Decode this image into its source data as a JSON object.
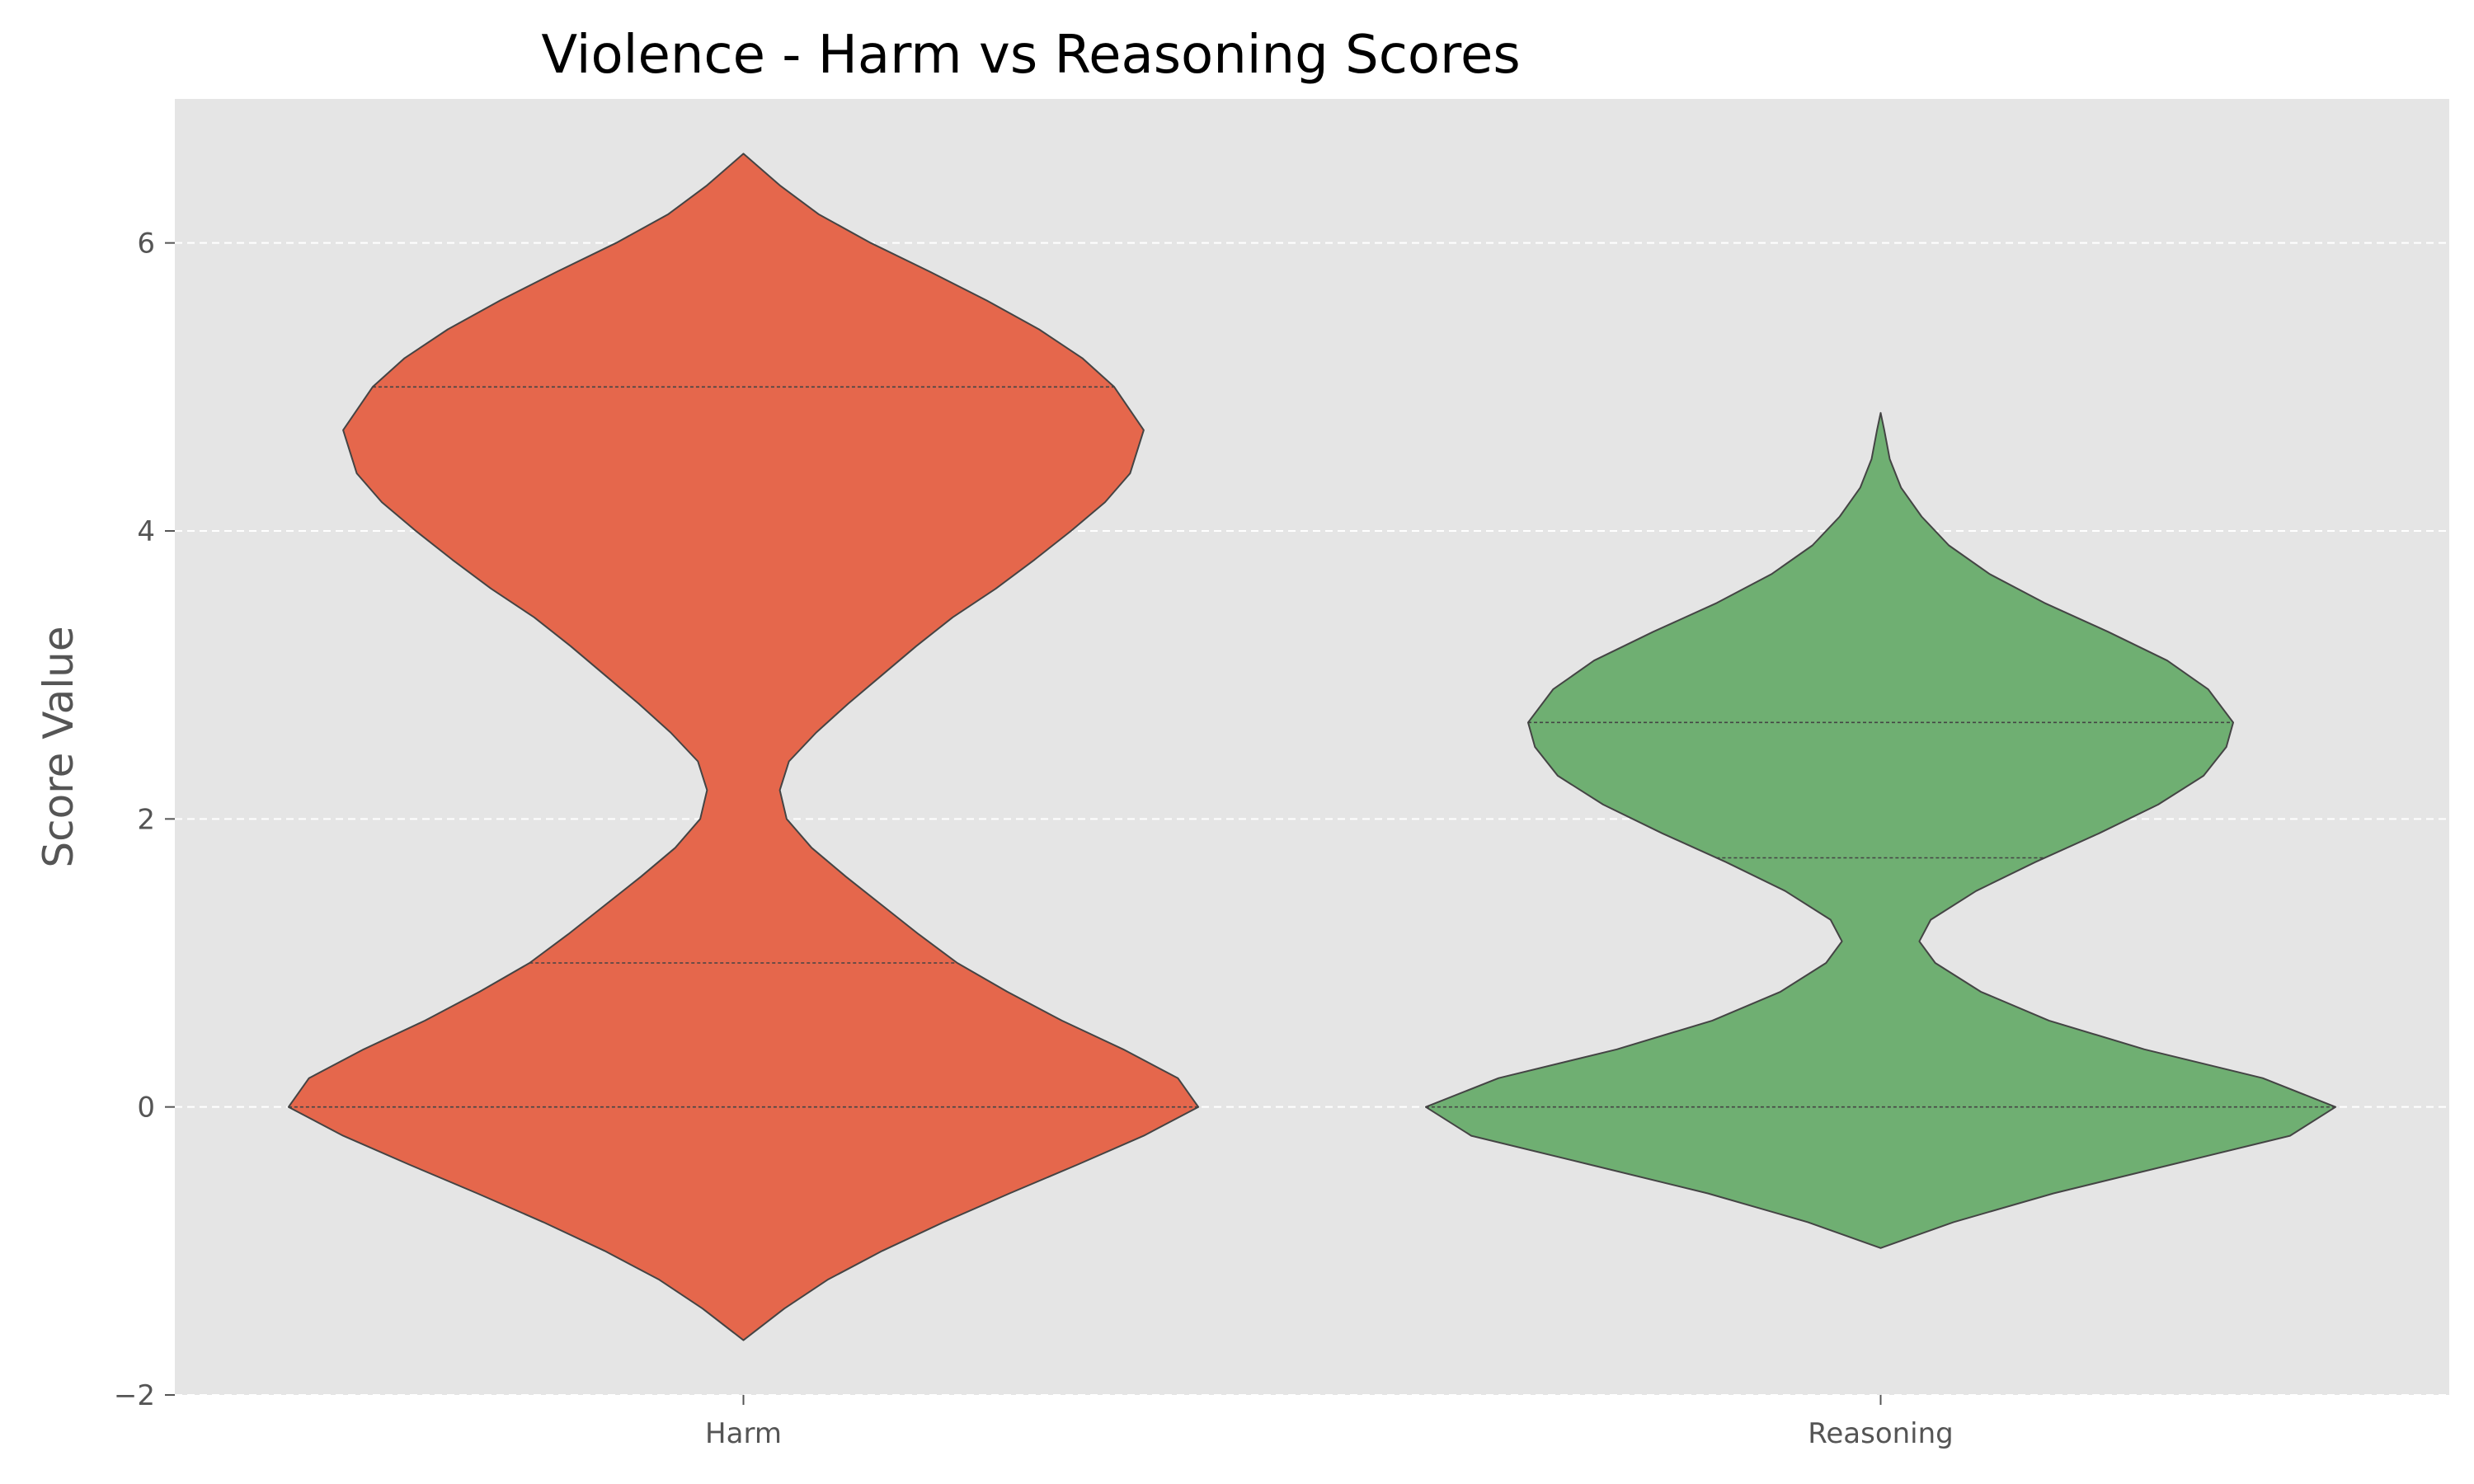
{
  "chart_data": {
    "type": "violin",
    "title": "Violence - Harm vs Reasoning Scores",
    "xlabel": "",
    "ylabel": "Score Value",
    "categories": [
      "Harm",
      "Reasoning"
    ],
    "ylim": [
      -2,
      7
    ],
    "yticks": [
      -2,
      0,
      2,
      4,
      6
    ],
    "ytick_labels": [
      "−2",
      "0",
      "2",
      "4",
      "6"
    ],
    "grid": true,
    "colors": {
      "background": "#e5e5e5",
      "grid": "#ffffff",
      "outline": "#444444",
      "Harm": "#e5674c",
      "Reasoning": "#6faf72"
    },
    "series": [
      {
        "category": "Harm",
        "color": "#e5674c",
        "range": [
          -1.62,
          6.62
        ],
        "quartiles": [
          0,
          1,
          5
        ],
        "density": [
          [
            -1.62,
            0.0
          ],
          [
            -1.4,
            0.09
          ],
          [
            -1.2,
            0.185
          ],
          [
            -1.0,
            0.305
          ],
          [
            -0.8,
            0.44
          ],
          [
            -0.6,
            0.585
          ],
          [
            -0.4,
            0.735
          ],
          [
            -0.2,
            0.88
          ],
          [
            0.0,
            1.0
          ],
          [
            0.2,
            0.955
          ],
          [
            0.4,
            0.835
          ],
          [
            0.6,
            0.7
          ],
          [
            0.8,
            0.58
          ],
          [
            1.0,
            0.47
          ],
          [
            1.2,
            0.385
          ],
          [
            1.4,
            0.305
          ],
          [
            1.6,
            0.225
          ],
          [
            1.8,
            0.15
          ],
          [
            2.0,
            0.095
          ],
          [
            2.2,
            0.08
          ],
          [
            2.4,
            0.1
          ],
          [
            2.6,
            0.16
          ],
          [
            2.8,
            0.23
          ],
          [
            3.0,
            0.305
          ],
          [
            3.2,
            0.38
          ],
          [
            3.4,
            0.46
          ],
          [
            3.6,
            0.555
          ],
          [
            3.8,
            0.64
          ],
          [
            4.0,
            0.72
          ],
          [
            4.2,
            0.795
          ],
          [
            4.4,
            0.85
          ],
          [
            4.7,
            0.88
          ],
          [
            5.0,
            0.815
          ],
          [
            5.2,
            0.745
          ],
          [
            5.4,
            0.65
          ],
          [
            5.6,
            0.535
          ],
          [
            5.8,
            0.41
          ],
          [
            6.0,
            0.28
          ],
          [
            6.2,
            0.165
          ],
          [
            6.4,
            0.08
          ],
          [
            6.62,
            0.0
          ]
        ]
      },
      {
        "category": "Reasoning",
        "color": "#6faf72",
        "range": [
          -0.98,
          4.82
        ],
        "quartiles": [
          0,
          1.73,
          2.67
        ],
        "density": [
          [
            -0.98,
            0.0
          ],
          [
            -0.8,
            0.16
          ],
          [
            -0.6,
            0.38
          ],
          [
            -0.4,
            0.64
          ],
          [
            -0.2,
            0.9
          ],
          [
            0.0,
            1.0
          ],
          [
            0.2,
            0.84
          ],
          [
            0.4,
            0.58
          ],
          [
            0.6,
            0.37
          ],
          [
            0.8,
            0.22
          ],
          [
            1.0,
            0.12
          ],
          [
            1.15,
            0.085
          ],
          [
            1.3,
            0.11
          ],
          [
            1.5,
            0.21
          ],
          [
            1.7,
            0.34
          ],
          [
            1.9,
            0.48
          ],
          [
            2.1,
            0.61
          ],
          [
            2.3,
            0.71
          ],
          [
            2.5,
            0.76
          ],
          [
            2.67,
            0.775
          ],
          [
            2.9,
            0.72
          ],
          [
            3.1,
            0.63
          ],
          [
            3.3,
            0.5
          ],
          [
            3.5,
            0.36
          ],
          [
            3.7,
            0.24
          ],
          [
            3.9,
            0.15
          ],
          [
            4.1,
            0.09
          ],
          [
            4.3,
            0.045
          ],
          [
            4.5,
            0.02
          ],
          [
            4.7,
            0.008
          ],
          [
            4.82,
            0.0
          ]
        ]
      }
    ]
  }
}
